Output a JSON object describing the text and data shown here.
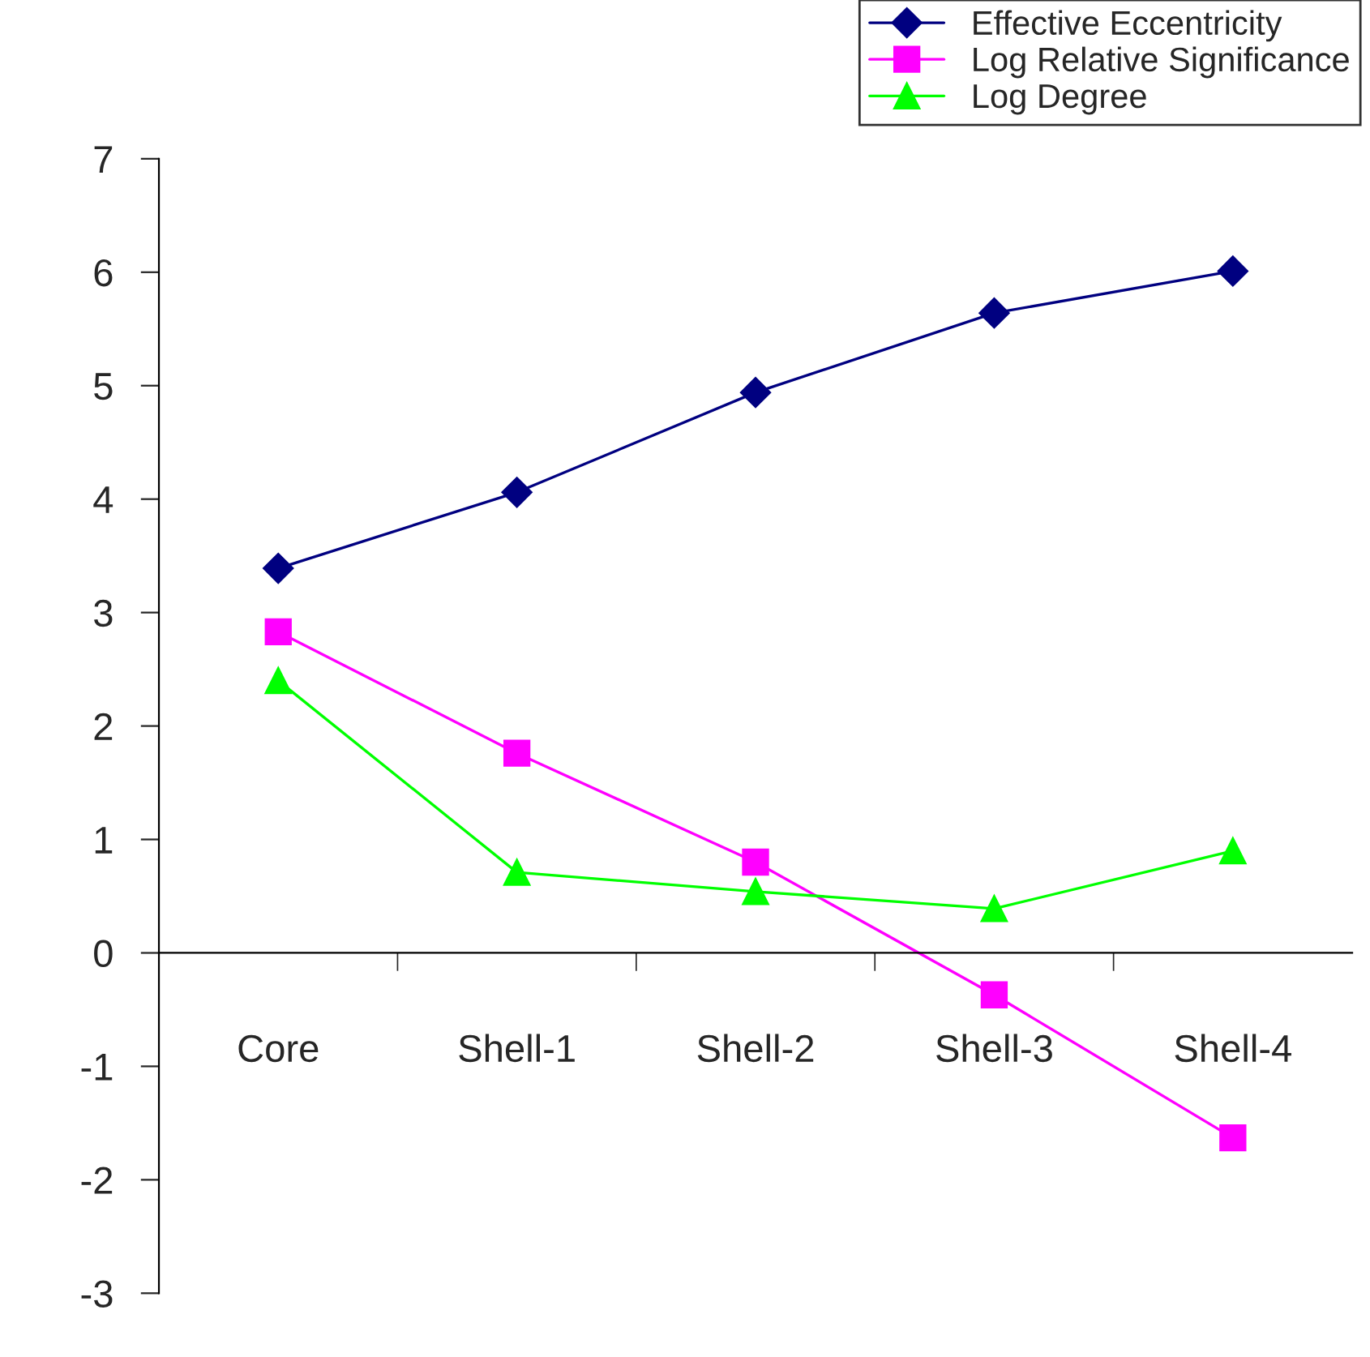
{
  "chart_data": {
    "type": "line",
    "categories": [
      "Core",
      "Shell-1",
      "Shell-2",
      "Shell-3",
      "Shell-4"
    ],
    "series": [
      {
        "name": "Effective Eccentricity",
        "color": "#000080",
        "marker": "diamond",
        "values": [
          3.39,
          4.06,
          4.94,
          5.64,
          6.01
        ]
      },
      {
        "name": "Log Relative Significance",
        "color": "#ff00ff",
        "marker": "square",
        "values": [
          2.83,
          1.76,
          0.8,
          -0.37,
          -1.63
        ]
      },
      {
        "name": "Log Degree",
        "color": "#00ff00",
        "marker": "triangle",
        "values": [
          2.4,
          0.71,
          0.54,
          0.39,
          0.9
        ]
      }
    ],
    "ylim": [
      -3,
      7
    ],
    "yticks": [
      -3,
      -2,
      -1,
      0,
      1,
      2,
      3,
      4,
      5,
      6,
      7
    ],
    "grid": false,
    "legend": "top right",
    "line_style": "solid"
  }
}
